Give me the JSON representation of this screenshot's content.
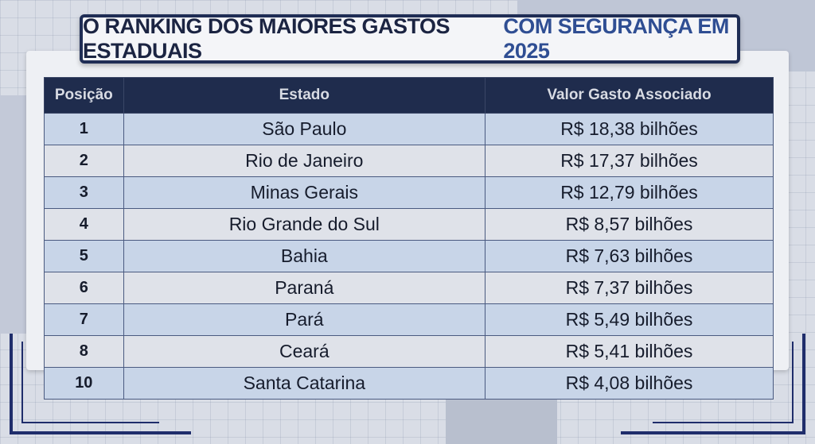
{
  "header": {
    "title_part1": "O RANKING DOS MAIORES GASTOS ESTADUAIS",
    "title_part2": "COM SEGURANÇA EM 2025"
  },
  "table": {
    "columns": [
      "Posição",
      "Estado",
      "Valor Gasto Associado"
    ],
    "rows": [
      [
        "1",
        "São Paulo",
        "R$ 18,38 bilhões"
      ],
      [
        "2",
        "Rio de Janeiro",
        "R$ 17,37 bilhões"
      ],
      [
        "3",
        "Minas Gerais",
        "R$ 12,79 bilhões"
      ],
      [
        "4",
        "Rio Grande do Sul",
        "R$ 8,57 bilhões"
      ],
      [
        "5",
        "Bahia",
        "R$ 7,63 bilhões"
      ],
      [
        "6",
        "Paraná",
        "R$ 7,37 bilhões"
      ],
      [
        "7",
        "Pará",
        "R$ 5,49 bilhões"
      ],
      [
        "8",
        "Ceará",
        "R$ 5,41 bilhões"
      ],
      [
        "10",
        "Santa Catarina",
        "R$ 4,08 bilhões"
      ]
    ]
  }
}
